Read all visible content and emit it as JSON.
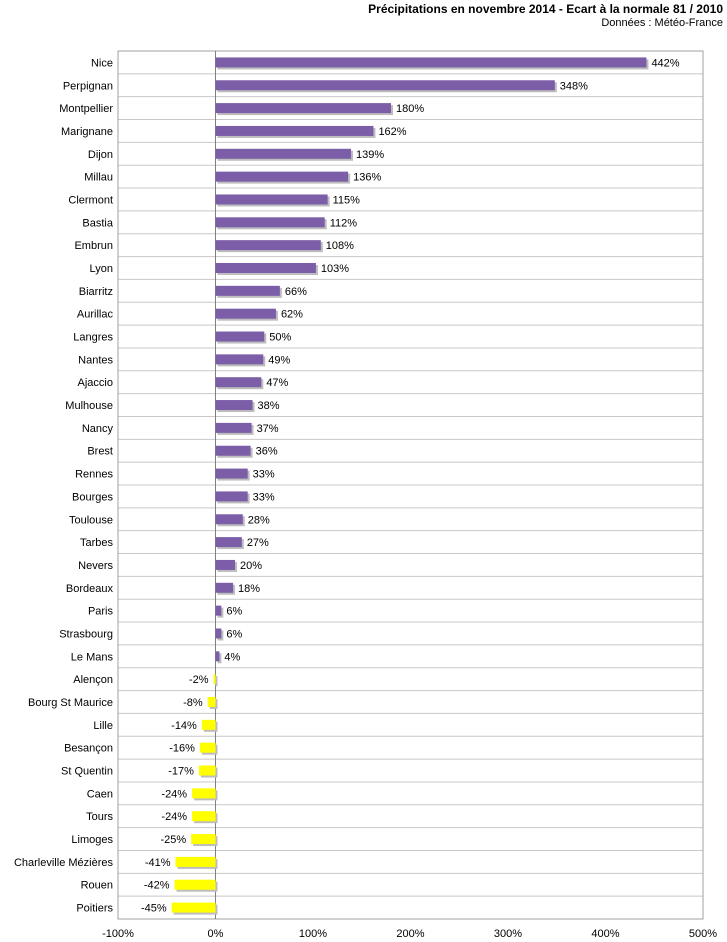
{
  "chart_data": {
    "type": "bar",
    "orientation": "horizontal",
    "title": "Précipitations en novembre 2014 - Ecart à la normale 81 / 2010",
    "subtitle": "Données : Météo-France",
    "xlabel": "",
    "ylabel": "",
    "xlim": [
      -100,
      500
    ],
    "x_ticks": [
      "-100%",
      "0%",
      "100%",
      "200%",
      "300%",
      "400%",
      "500%"
    ],
    "grid": "horizontal",
    "legend": "none",
    "positive_color": "#7b5ea7",
    "negative_color": "#ffff00",
    "categories": [
      "Nice",
      "Perpignan",
      "Montpellier",
      "Marignane",
      "Dijon",
      "Millau",
      "Clermont",
      "Bastia",
      "Embrun",
      "Lyon",
      "Biarritz",
      "Aurillac",
      "Langres",
      "Nantes",
      "Ajaccio",
      "Mulhouse",
      "Nancy",
      "Brest",
      "Rennes",
      "Bourges",
      "Toulouse",
      "Tarbes",
      "Nevers",
      "Bordeaux",
      "Paris",
      "Strasbourg",
      "Le Mans",
      "Alençon",
      "Bourg St Maurice",
      "Lille",
      "Besançon",
      "St Quentin",
      "Caen",
      "Tours",
      "Limoges",
      "Charleville Mézières",
      "Rouen",
      "Poitiers"
    ],
    "values": [
      442,
      348,
      180,
      162,
      139,
      136,
      115,
      112,
      108,
      103,
      66,
      62,
      50,
      49,
      47,
      38,
      37,
      36,
      33,
      33,
      28,
      27,
      20,
      18,
      6,
      6,
      4,
      -2,
      -8,
      -14,
      -16,
      -17,
      -24,
      -24,
      -25,
      -41,
      -42,
      -45
    ],
    "value_labels": [
      "442%",
      "348%",
      "180%",
      "162%",
      "139%",
      "136%",
      "115%",
      "112%",
      "108%",
      "103%",
      "66%",
      "62%",
      "50%",
      "49%",
      "47%",
      "38%",
      "37%",
      "36%",
      "33%",
      "33%",
      "28%",
      "27%",
      "20%",
      "18%",
      "6%",
      "6%",
      "4%",
      "-2%",
      "-8%",
      "-14%",
      "-16%",
      "-17%",
      "-24%",
      "-24%",
      "-25%",
      "-41%",
      "-42%",
      "-45%"
    ]
  }
}
